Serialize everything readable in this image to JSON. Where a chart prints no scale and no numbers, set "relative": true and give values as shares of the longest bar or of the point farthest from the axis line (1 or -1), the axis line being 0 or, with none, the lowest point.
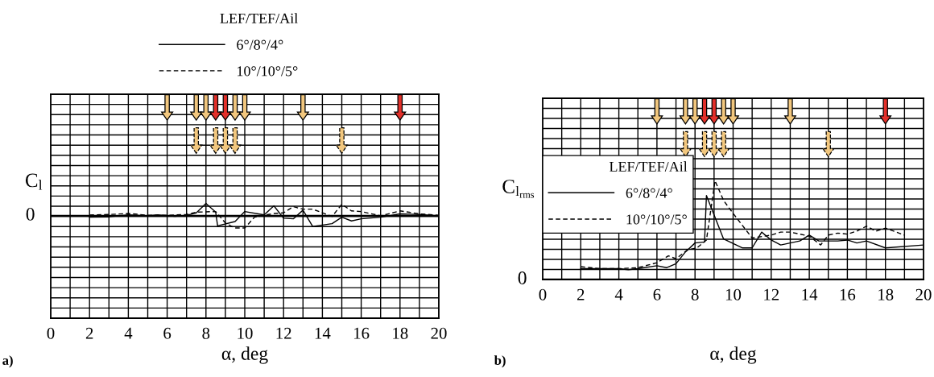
{
  "chart_data": [
    {
      "type": "line",
      "relative": true,
      "xlabel": "α, deg",
      "ylabel": "C$_{l}$",
      "legend_title": "LEF/TEF/Ail",
      "legend": "top",
      "grid": true,
      "marker": "none",
      "xlim": [
        0,
        20
      ],
      "xticks": [
        0,
        {
          "value": 1,
          "label": null
        },
        2,
        {
          "value": 3,
          "label": null
        },
        4,
        {
          "value": 5,
          "label": null
        },
        6,
        {
          "value": 7,
          "label": null
        },
        8,
        {
          "value": 9,
          "label": null
        },
        10,
        {
          "value": 11,
          "label": null
        },
        12,
        {
          "value": 13,
          "label": null
        },
        14,
        {
          "value": 15,
          "label": null
        },
        16,
        {
          "value": 17,
          "label": null
        },
        18,
        {
          "value": 19,
          "label": null
        },
        20
      ],
      "annotations": [
        "0",
        "a)"
      ],
      "series": [
        {
          "name": "6°/8°/4°",
          "color": "#000000",
          "line_style": "solid",
          "x": [
            2,
            3,
            4,
            5,
            5.5,
            6.4,
            7,
            7.5,
            8,
            8.5,
            8.6,
            9.5,
            10,
            11,
            11.5,
            12,
            12.5,
            13,
            13.5,
            14.5,
            15,
            15.5,
            16,
            17,
            18,
            19,
            20
          ],
          "values": [
            -0.11,
            -0.08,
            0.08,
            0,
            0.08,
            -0.04,
            0.04,
            0.24,
            1,
            0.3,
            -0.81,
            -0.46,
            0.35,
            0.08,
            0.81,
            -0.19,
            -0.24,
            0.46,
            -0.86,
            -0.63,
            -0.11,
            -0.41,
            -0.24,
            -0.11,
            0.16,
            0.11,
            0
          ]
        },
        {
          "name": "10°/10°/5°",
          "color": "#000000",
          "line_style": "dashed",
          "x": [
            2,
            3,
            4,
            5,
            6,
            7,
            7.5,
            8.5,
            9,
            9.5,
            10,
            10.5,
            11.5,
            12,
            12.5,
            13,
            13.5,
            14.5,
            15,
            15.5,
            16,
            17,
            18,
            19,
            20
          ],
          "values": [
            0.07,
            0.11,
            0.19,
            0.05,
            0.05,
            0.11,
            0.3,
            0.35,
            -0.58,
            -0.98,
            -0.98,
            -0.11,
            0.19,
            0.24,
            0.74,
            0.54,
            0.54,
            -0.05,
            0.93,
            0.4,
            0.35,
            0,
            0.4,
            0.16,
            0.05
          ]
        }
      ]
    },
    {
      "type": "line",
      "relative": true,
      "xlabel": "α, deg",
      "ylabel": "C$_{l}$$_{rms}$",
      "legend_title": "LEF/TEF/Ail",
      "legend": "left",
      "grid": true,
      "marker": "none",
      "xlim": [
        0,
        20
      ],
      "xticks": [
        0,
        {
          "value": 1,
          "label": null
        },
        2,
        {
          "value": 3,
          "label": null
        },
        4,
        {
          "value": 5,
          "label": null
        },
        6,
        {
          "value": 7,
          "label": null
        },
        8,
        {
          "value": 9,
          "label": null
        },
        10,
        {
          "value": 11,
          "label": null
        },
        12,
        {
          "value": 13,
          "label": null
        },
        14,
        {
          "value": 15,
          "label": null
        },
        16,
        {
          "value": 17,
          "label": null
        },
        18,
        {
          "value": 19,
          "label": null
        },
        20
      ],
      "annotations": [
        "0",
        "b)"
      ],
      "series": [
        {
          "name": "6°/8°/4°",
          "color": "#000000",
          "line_style": "solid",
          "x": [
            2,
            3,
            4,
            4.5,
            5,
            6,
            6.5,
            7,
            7.5,
            8,
            8.5,
            8.6,
            9.5,
            10.5,
            11,
            11.5,
            12,
            12.5,
            13.5,
            14,
            14.5,
            15.5,
            16,
            16.5,
            17,
            18,
            20
          ],
          "values": [
            0.11,
            0.11,
            0.11,
            0.1,
            0.11,
            0.14,
            0.12,
            0.16,
            0.28,
            0.37,
            0.38,
            0.85,
            0.41,
            0.32,
            0.32,
            0.48,
            0.4,
            0.35,
            0.39,
            0.45,
            0.39,
            0.39,
            0.4,
            0.37,
            0.39,
            0.32,
            0.35
          ]
        },
        {
          "name": "10°/10°/5°",
          "color": "#000000",
          "line_style": "dashed",
          "x": [
            2,
            3,
            4,
            5,
            6,
            6.6,
            7,
            7.6,
            8.1,
            8.6,
            9.05,
            9.5,
            10,
            11,
            12,
            12.5,
            13,
            13.5,
            14,
            14.6,
            15,
            15.5,
            16,
            16.5,
            17,
            17.5,
            18,
            19
          ],
          "values": [
            0.13,
            0.11,
            0.11,
            0.12,
            0.17,
            0.24,
            0.21,
            0.3,
            0.32,
            0.4,
            1,
            0.8,
            0.67,
            0.42,
            0.45,
            0.48,
            0.48,
            0.46,
            0.44,
            0.35,
            0.45,
            0.47,
            0.46,
            0.49,
            0.54,
            0.49,
            0.52,
            0.45
          ]
        }
      ]
    }
  ]
}
